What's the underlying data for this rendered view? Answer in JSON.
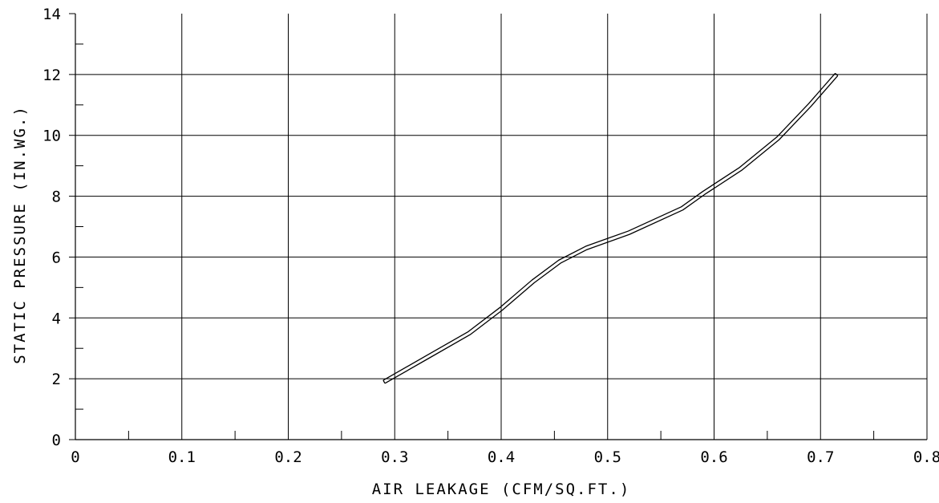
{
  "chart_data": {
    "type": "line",
    "xlabel": "AIR LEAKAGE (CFM/SQ.FT.)",
    "ylabel": "STATIC PRESSURE (IN.WG.)",
    "xlim": [
      0,
      0.8
    ],
    "ylim": [
      0,
      14
    ],
    "x_ticks": [
      0,
      0.1,
      0.2,
      0.3,
      0.4,
      0.5,
      0.6,
      0.7,
      0.8
    ],
    "x_tick_labels": [
      "0",
      "0.1",
      "0.2",
      "0.3",
      "0.4",
      "0.5",
      "0.6",
      "0.7",
      "0.8"
    ],
    "y_ticks": [
      0,
      2,
      4,
      6,
      8,
      10,
      12,
      14
    ],
    "y_tick_labels": [
      "0",
      "2",
      "4",
      "6",
      "8",
      "10",
      "12",
      "14"
    ],
    "x_minor_step": 0.05,
    "y_minor_step": 1,
    "grid": true,
    "series": [
      {
        "style": "double-line",
        "x": [
          0.29,
          0.33,
          0.37,
          0.4,
          0.43,
          0.455,
          0.48,
          0.52,
          0.57,
          0.59,
          0.625,
          0.66,
          0.69,
          0.715
        ],
        "y": [
          1.9,
          2.7,
          3.5,
          4.3,
          5.2,
          5.85,
          6.3,
          6.8,
          7.6,
          8.1,
          8.9,
          9.9,
          11.0,
          12.0
        ]
      }
    ]
  },
  "colors": {
    "background": "#ffffff",
    "line": "#000000",
    "grid": "#000000"
  }
}
